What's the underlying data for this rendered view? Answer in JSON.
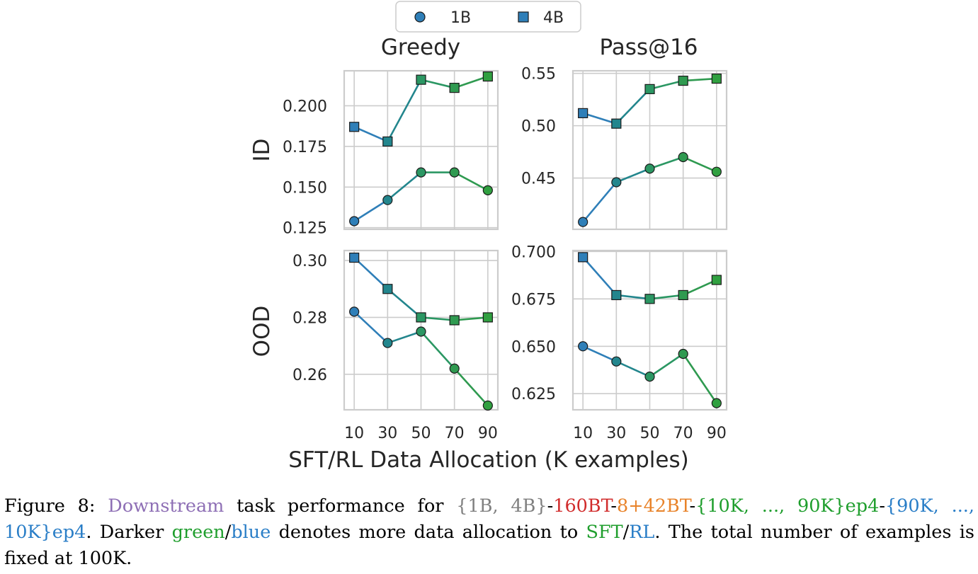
{
  "legend": {
    "entries": [
      {
        "label": "1B",
        "marker": "circle"
      },
      {
        "label": "4B",
        "marker": "square"
      }
    ]
  },
  "colors": {
    "gradient": [
      "#2f7fb8",
      "#23868d",
      "#2b9763",
      "#2f9a50",
      "#30a040"
    ],
    "marker_edge": "#1a1a1a",
    "grid": "#cccccc",
    "caption_purple": "#8e6fb5",
    "caption_gray": "#808080",
    "caption_red": "#d12c2c",
    "caption_orange": "#e8832a",
    "caption_green": "#1f9e2d",
    "caption_blue": "#2a7ec7"
  },
  "xlabel": "SFT/RL Data Allocation (K examples)",
  "chart_data": [
    {
      "type": "line",
      "title": "Greedy",
      "ylabel": "ID",
      "x": [
        10,
        30,
        50,
        70,
        90
      ],
      "xticks": [
        "10",
        "30",
        "50",
        "70",
        "90"
      ],
      "ylim": [
        0.124,
        0.2215
      ],
      "yticks": [
        "0.125",
        "0.150",
        "0.175",
        "0.200"
      ],
      "grid": true,
      "series": [
        {
          "name": "4B",
          "marker": "square",
          "values": [
            0.187,
            0.178,
            0.216,
            0.211,
            0.218
          ]
        },
        {
          "name": "1B",
          "marker": "circle",
          "values": [
            0.129,
            0.142,
            0.159,
            0.159,
            0.148
          ]
        }
      ]
    },
    {
      "type": "line",
      "title": "Pass@16",
      "ylabel": "",
      "x": [
        10,
        30,
        50,
        70,
        90
      ],
      "xticks": [
        "10",
        "30",
        "50",
        "70",
        "90"
      ],
      "ylim": [
        0.401,
        0.5525
      ],
      "yticks": [
        "0.45",
        "0.50",
        "0.55"
      ],
      "grid": true,
      "series": [
        {
          "name": "4B",
          "marker": "square",
          "values": [
            0.512,
            0.502,
            0.535,
            0.543,
            0.545
          ]
        },
        {
          "name": "1B",
          "marker": "circle",
          "values": [
            0.408,
            0.446,
            0.459,
            0.47,
            0.456
          ]
        }
      ]
    },
    {
      "type": "line",
      "title": "",
      "ylabel": "OOD",
      "x": [
        10,
        30,
        50,
        70,
        90
      ],
      "xticks": [
        "10",
        "30",
        "50",
        "70",
        "90"
      ],
      "ylim": [
        0.2475,
        0.3035
      ],
      "yticks": [
        "0.26",
        "0.28",
        "0.30"
      ],
      "grid": true,
      "series": [
        {
          "name": "4B",
          "marker": "square",
          "values": [
            0.301,
            0.29,
            0.28,
            0.279,
            0.28
          ]
        },
        {
          "name": "1B",
          "marker": "circle",
          "values": [
            0.282,
            0.271,
            0.275,
            0.262,
            0.249
          ]
        }
      ]
    },
    {
      "type": "line",
      "title": "",
      "ylabel": "",
      "x": [
        10,
        30,
        50,
        70,
        90
      ],
      "xticks": [
        "10",
        "30",
        "50",
        "70",
        "90"
      ],
      "ylim": [
        0.6165,
        0.7005
      ],
      "yticks": [
        "0.625",
        "0.650",
        "0.675",
        "0.700"
      ],
      "grid": true,
      "series": [
        {
          "name": "4B",
          "marker": "square",
          "values": [
            0.697,
            0.677,
            0.675,
            0.677,
            0.685
          ]
        },
        {
          "name": "1B",
          "marker": "circle",
          "values": [
            0.65,
            0.642,
            0.634,
            0.646,
            0.62
          ]
        }
      ]
    }
  ],
  "caption": {
    "lead": "Figure 8: ",
    "downstream": "Downstream",
    "t1": " task performance for ",
    "models": "{1B, 4B}",
    "d1": "-",
    "bt160": "160BT",
    "d2": "-",
    "bt42": "8+42BT",
    "d3": "-",
    "sft": "{10K, ..., 90K}ep4",
    "d4": "-",
    "rl": "{90K, ..., 10K}ep4",
    "t2": ". Darker ",
    "green": "green",
    "slash1": "/",
    "blue": "blue",
    "t3": " denotes more data allocation to ",
    "sftword": "SFT",
    "slash2": "/",
    "rlword": "RL",
    "t4": ". The total number of examples is fixed at 100K."
  }
}
